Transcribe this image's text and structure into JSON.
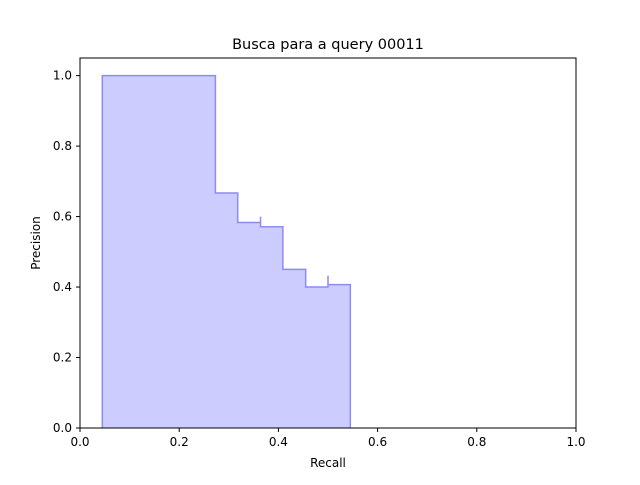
{
  "chart_data": {
    "type": "area",
    "title": "Busca para a query 00011",
    "xlabel": "Recall",
    "ylabel": "Precision",
    "xlim": [
      0.0,
      1.0
    ],
    "ylim": [
      0.0,
      1.05
    ],
    "xticks": [
      "0.0",
      "0.2",
      "0.4",
      "0.6",
      "0.8",
      "1.0"
    ],
    "yticks": [
      "0.0",
      "0.2",
      "0.4",
      "0.6",
      "0.8",
      "1.0"
    ],
    "grid": false,
    "step": "post",
    "line_color": "#8c8cf2",
    "fill_color": "#ccccff",
    "fill_baseline": 0,
    "series": [
      {
        "recall": [
          0.045,
          0.273,
          0.318,
          0.364,
          0.409,
          0.455,
          0.5,
          0.545
        ],
        "precision": [
          1.0,
          0.667,
          0.583,
          0.571,
          0.45,
          0.4,
          0.407,
          0.407
        ],
        "spikes": [
          0.7,
          0.615,
          0.6,
          0.476,
          0.429,
          0.432
        ]
      }
    ]
  }
}
